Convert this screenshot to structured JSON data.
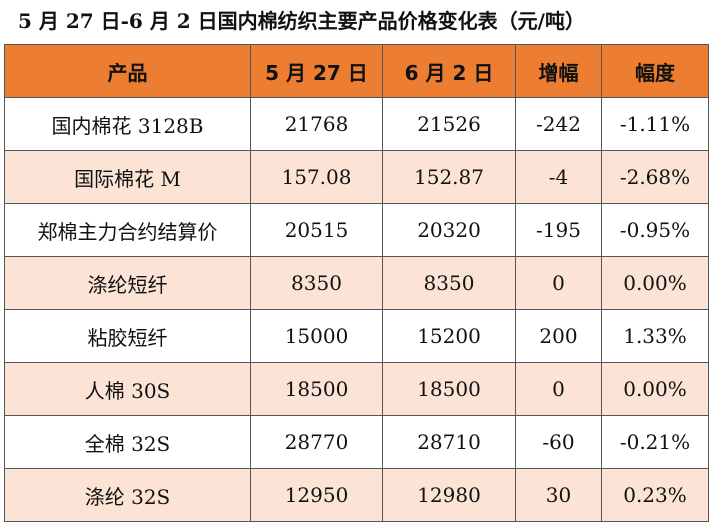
{
  "title": "5 月 27 日-6 月 2 日国内棉纺织主要产品价格变化表（元/吨）",
  "header": {
    "product": "产品",
    "date1": "5 月 27 日",
    "date2": "6 月 2 日",
    "change": "增幅",
    "pct": "幅度"
  },
  "rows": [
    {
      "product": "国内棉花 3128B",
      "date1": "21768",
      "date2": "21526",
      "change": "-242",
      "pct": "-1.11%"
    },
    {
      "product": "国际棉花 M",
      "date1": "157.08",
      "date2": "152.87",
      "change": "-4",
      "pct": "-2.68%"
    },
    {
      "product": "郑棉主力合约结算价",
      "date1": "20515",
      "date2": "20320",
      "change": "-195",
      "pct": "-0.95%"
    },
    {
      "product": "涤纶短纤",
      "date1": "8350",
      "date2": "8350",
      "change": "0",
      "pct": "0.00%"
    },
    {
      "product": "粘胶短纤",
      "date1": "15000",
      "date2": "15200",
      "change": "200",
      "pct": "1.33%"
    },
    {
      "product": "人棉 30S",
      "date1": "18500",
      "date2": "18500",
      "change": "0",
      "pct": "0.00%"
    },
    {
      "product": "全棉 32S",
      "date1": "28770",
      "date2": "28710",
      "change": "-60",
      "pct": "-0.21%"
    },
    {
      "product": "涤纶 32S",
      "date1": "12950",
      "date2": "12980",
      "change": "30",
      "pct": "0.23%"
    }
  ],
  "colors": {
    "header_bg": "#ED7D31",
    "alt_row_bg": "#FBE4D5"
  }
}
